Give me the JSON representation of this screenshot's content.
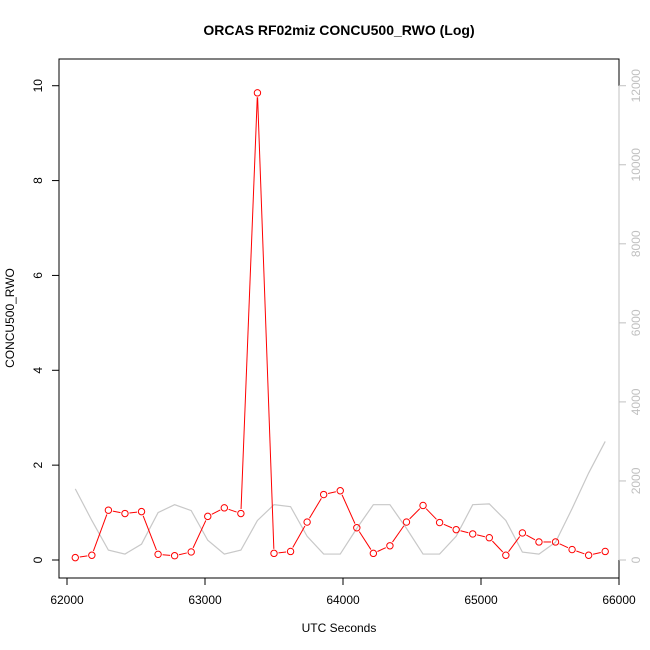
{
  "chart_data": {
    "type": "line",
    "title": "ORCAS RF02miz CONCU500_RWO (Log)",
    "xlabel": "UTC Seconds",
    "ylabel": "CONCU500_RWO",
    "xlim": [
      62000,
      66000
    ],
    "ylim": [
      0,
      10.5
    ],
    "y2lim": [
      0,
      12600
    ],
    "x_ticks": [
      62000,
      63000,
      64000,
      65000,
      66000
    ],
    "y_ticks": [
      0,
      2,
      4,
      6,
      8,
      10
    ],
    "y2_ticks": [
      0,
      2000,
      4000,
      6000,
      8000,
      10000,
      12000
    ],
    "grid": false,
    "series": [
      {
        "role": "primary",
        "color": "#ff0000",
        "marker": "circle-open",
        "x": [
          62060,
          62180,
          62300,
          62420,
          62540,
          62660,
          62780,
          62900,
          63020,
          63140,
          63260,
          63380,
          63500,
          63620,
          63740,
          63860,
          63980,
          64100,
          64220,
          64340,
          64460,
          64580,
          64700,
          64820,
          64940,
          65060,
          65180,
          65300,
          65420,
          65540,
          65660,
          65780,
          65900
        ],
        "y": [
          0.05,
          0.1,
          1.05,
          0.98,
          1.02,
          0.12,
          0.09,
          0.17,
          0.92,
          1.1,
          0.98,
          9.85,
          0.14,
          0.18,
          0.8,
          1.38,
          1.46,
          0.68,
          0.14,
          0.3,
          0.8,
          1.15,
          0.79,
          0.64,
          0.55,
          0.47,
          0.1,
          0.57,
          0.38,
          0.38,
          0.22,
          0.1,
          0.18
        ]
      },
      {
        "role": "secondary",
        "color": "#c8c8c8",
        "axis": "right",
        "x": [
          62060,
          62180,
          62300,
          62420,
          62540,
          62660,
          62780,
          62900,
          63020,
          63140,
          63260,
          63380,
          63500,
          63620,
          63740,
          63860,
          63980,
          64100,
          64220,
          64340,
          64460,
          64580,
          64700,
          64820,
          64940,
          65060,
          65180,
          65300,
          65420,
          65540,
          65660,
          65780,
          65900
        ],
        "y": [
          1800,
          1000,
          250,
          150,
          400,
          1200,
          1400,
          1250,
          500,
          150,
          250,
          1000,
          1400,
          1350,
          600,
          150,
          150,
          800,
          1400,
          1400,
          800,
          150,
          150,
          600,
          1400,
          1420,
          1000,
          200,
          150,
          450,
          1300,
          2200,
          3000
        ]
      }
    ]
  }
}
